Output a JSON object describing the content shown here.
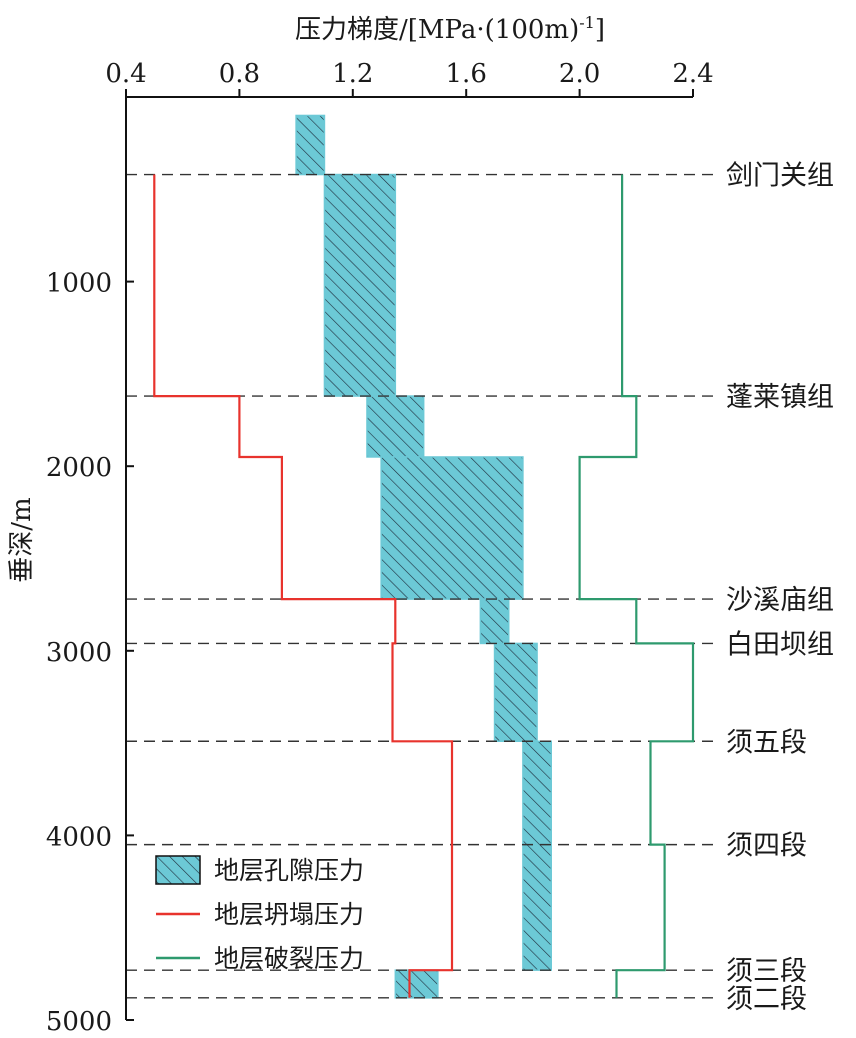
{
  "chart_data": {
    "type": "area",
    "title": "",
    "xlabel": "压力梯度/[MPa·(100m)",
    "xlabel_sup": "-1",
    "xlabel_close": "]",
    "ylabel": "垂深/m",
    "xlim": [
      0.4,
      2.4
    ],
    "ylim": [
      0,
      5000
    ],
    "y_inverted": true,
    "x_axis_position": "top",
    "x_ticks": [
      0.4,
      0.8,
      1.2,
      1.6,
      2.0,
      2.4
    ],
    "x_tick_labels": [
      "0.4",
      "0.8",
      "1.2",
      "1.6",
      "2.0",
      "2.4"
    ],
    "y_ticks": [
      1000,
      2000,
      3000,
      4000,
      5000
    ],
    "y_tick_labels": [
      "1000",
      "2000",
      "3000",
      "4000",
      "5000"
    ],
    "formation_tops": [
      {
        "name": "剑门关组",
        "depth": 420
      },
      {
        "name": "蓬莱镇组",
        "depth": 1620
      },
      {
        "name": "沙溪庙组",
        "depth": 2720
      },
      {
        "name": "白田坝组",
        "depth": 2960
      },
      {
        "name": "须五段",
        "depth": 3490
      },
      {
        "name": "须四段",
        "depth": 4050
      },
      {
        "name": "须三段",
        "depth": 4730
      },
      {
        "name": "须二段",
        "depth": 4880
      }
    ],
    "pore_pressure_band": [
      {
        "top": 100,
        "bottom": 420,
        "min": 1.0,
        "max": 1.1
      },
      {
        "top": 420,
        "bottom": 1620,
        "min": 1.1,
        "max": 1.35
      },
      {
        "top": 1620,
        "bottom": 1950,
        "min": 1.25,
        "max": 1.45
      },
      {
        "top": 1950,
        "bottom": 2720,
        "min": 1.3,
        "max": 1.8
      },
      {
        "top": 2720,
        "bottom": 2960,
        "min": 1.65,
        "max": 1.75
      },
      {
        "top": 2960,
        "bottom": 3490,
        "min": 1.7,
        "max": 1.85
      },
      {
        "top": 3490,
        "bottom": 4730,
        "min": 1.8,
        "max": 1.9
      },
      {
        "top": 4730,
        "bottom": 4880,
        "min": 1.35,
        "max": 1.5
      }
    ],
    "series": [
      {
        "name": "地层坍塌压力",
        "color": "#e8332d",
        "points": [
          [
            0.5,
            420
          ],
          [
            0.5,
            1620
          ],
          [
            0.8,
            1620
          ],
          [
            0.8,
            1950
          ],
          [
            0.95,
            1950
          ],
          [
            0.95,
            2720
          ],
          [
            1.35,
            2720
          ],
          [
            1.35,
            2960
          ],
          [
            1.34,
            2960
          ],
          [
            1.34,
            3490
          ],
          [
            1.55,
            3490
          ],
          [
            1.55,
            4730
          ],
          [
            1.4,
            4730
          ],
          [
            1.4,
            4880
          ]
        ]
      },
      {
        "name": "地层破裂压力",
        "color": "#2e9a6e",
        "points": [
          [
            2.15,
            420
          ],
          [
            2.15,
            1620
          ],
          [
            2.2,
            1620
          ],
          [
            2.2,
            1950
          ],
          [
            2.0,
            1950
          ],
          [
            2.0,
            2720
          ],
          [
            2.2,
            2720
          ],
          [
            2.2,
            2960
          ],
          [
            2.4,
            2960
          ],
          [
            2.4,
            3490
          ],
          [
            2.25,
            3490
          ],
          [
            2.25,
            4050
          ],
          [
            2.3,
            4050
          ],
          [
            2.3,
            4730
          ],
          [
            2.13,
            4730
          ],
          [
            2.13,
            4880
          ]
        ]
      }
    ],
    "legend": {
      "placement": "bottom-left",
      "items": [
        {
          "label": "地层孔隙压力",
          "kind": "hatched",
          "color": "#6cc9d6"
        },
        {
          "label": "地层坍塌压力",
          "kind": "line",
          "color": "#e8332d"
        },
        {
          "label": "地层破裂压力",
          "kind": "line",
          "color": "#2e9a6e"
        }
      ]
    },
    "grid": false
  }
}
